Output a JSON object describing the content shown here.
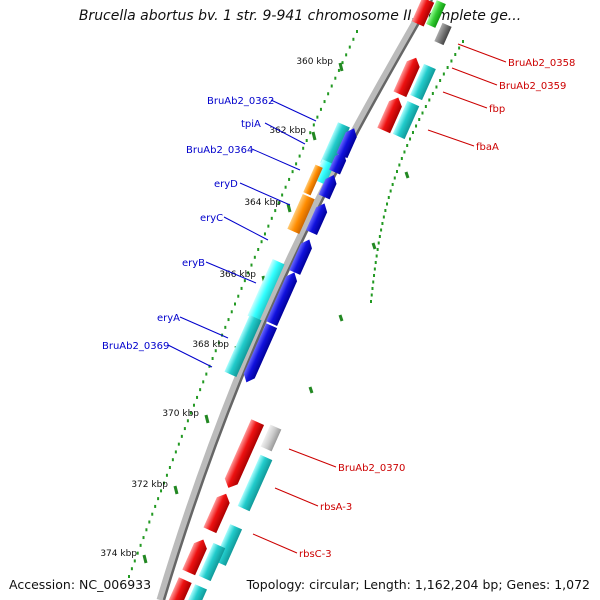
{
  "title": "Brucella abortus bv. 1 str. 9-941 chromosome II, complete ge...",
  "footer": {
    "accession": "Accession: NC_006933",
    "topology": "Topology: circular; Length: 1,162,204 bp; Genes: 1,072"
  },
  "colors": {
    "red": "#ee1111",
    "cyan": "#22cccc",
    "light_cyan": "#33ffff",
    "blue": "#1111dd",
    "orange": "#ff8c00",
    "gray": "#cccccc",
    "dark_gray": "#777777",
    "green": "#33cc33",
    "tick_green": "#228822",
    "label_blue": "#0000cc",
    "label_red": "#cc0000"
  },
  "ticks": [
    {
      "label": "360 kbp"
    },
    {
      "label": "362 kbp"
    },
    {
      "label": "364 kbp"
    },
    {
      "label": "366 kbp"
    },
    {
      "label": "368 kbp"
    },
    {
      "label": "370 kbp"
    },
    {
      "label": "372 kbp"
    },
    {
      "label": "374 kbp"
    }
  ],
  "gene_labels_left": [
    {
      "name": "BruAb2_0362"
    },
    {
      "name": "tpiA"
    },
    {
      "name": "BruAb2_0364"
    },
    {
      "name": "eryD"
    },
    {
      "name": "eryC"
    },
    {
      "name": "eryB"
    },
    {
      "name": "eryA"
    },
    {
      "name": "BruAb2_0369"
    }
  ],
  "gene_labels_right": [
    {
      "name": "BruAb2_0358"
    },
    {
      "name": "BruAb2_0359"
    },
    {
      "name": "fbp"
    },
    {
      "name": "fbaA"
    },
    {
      "name": "BruAb2_0370"
    },
    {
      "name": "rbsA-3"
    },
    {
      "name": "rbsC-3"
    }
  ]
}
